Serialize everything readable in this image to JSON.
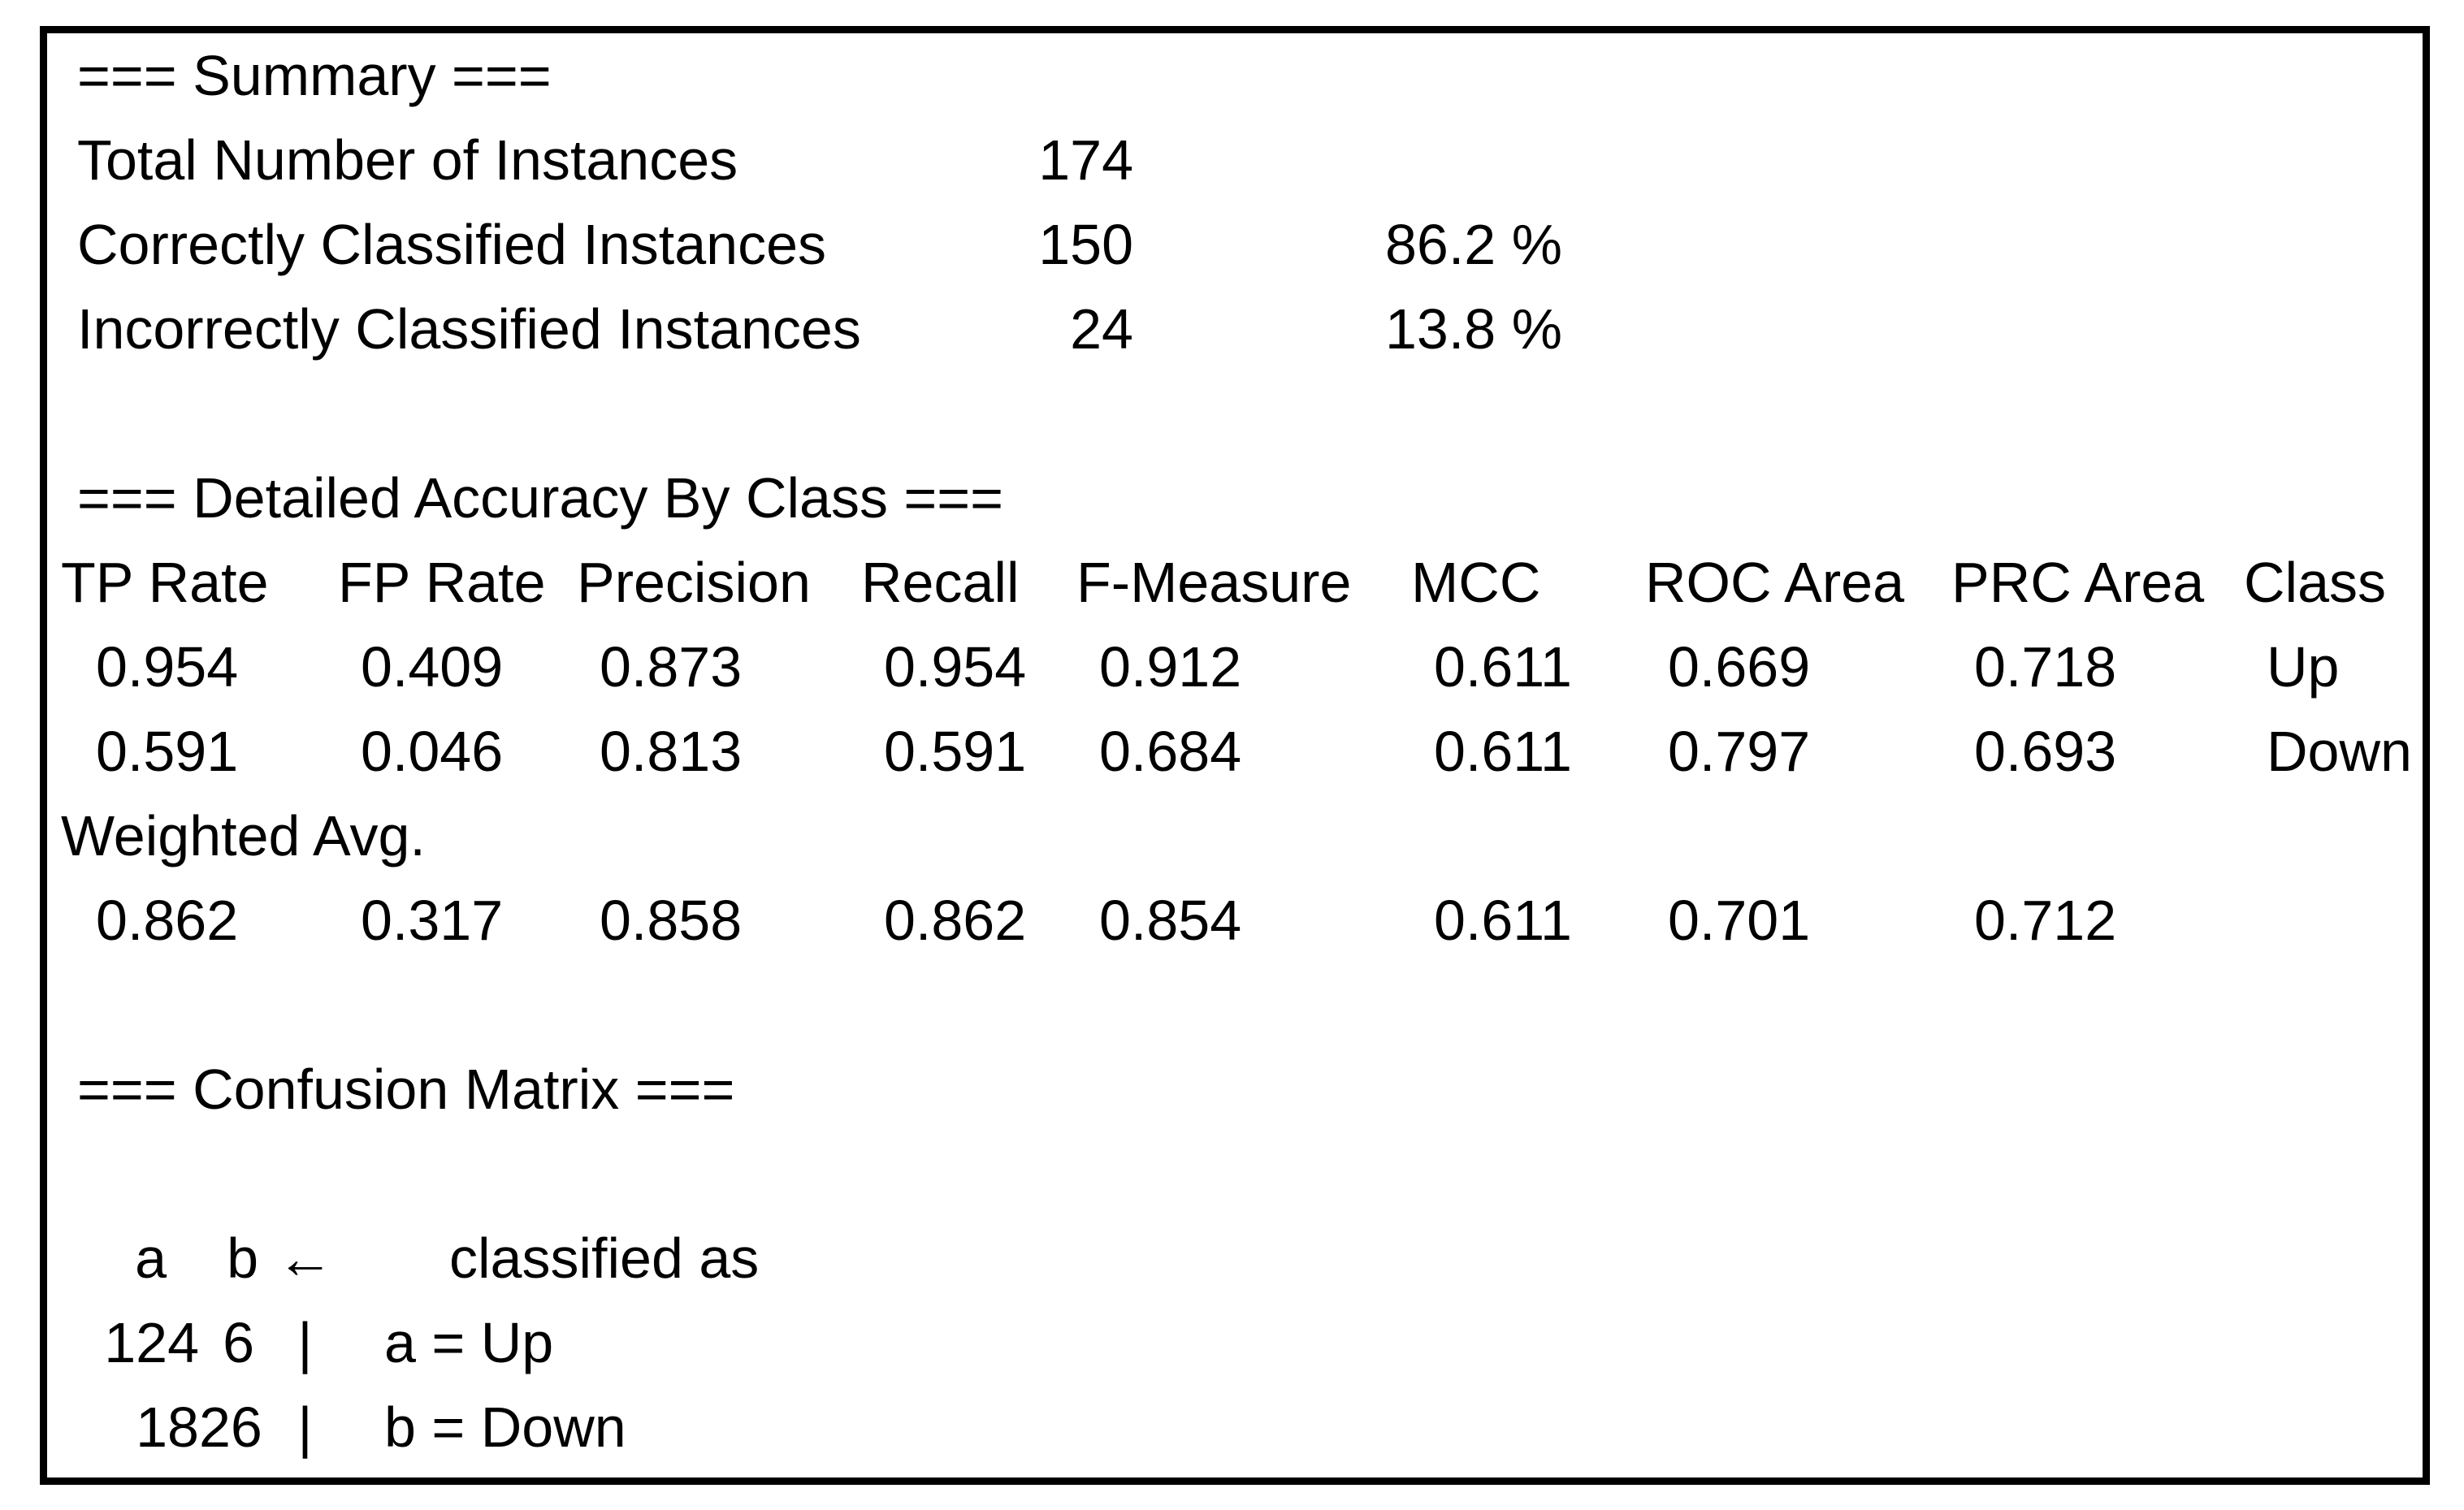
{
  "colors": {
    "background": "#ffffff",
    "border": "#000000",
    "text": "#000000"
  },
  "summary": {
    "heading": "=== Summary ===",
    "rows": [
      {
        "label": "Total Number of Instances",
        "value": "174",
        "pct": ""
      },
      {
        "label": "Correctly Classified Instances",
        "value": "150",
        "pct": "86.2 %"
      },
      {
        "label": "Incorrectly Classified Instances",
        "value": "24",
        "pct": "13.8 %"
      }
    ]
  },
  "detailed_accuracy": {
    "heading": "=== Detailed Accuracy By Class ===",
    "columns": [
      "TP Rate",
      "FP Rate",
      "Precision",
      "Recall",
      "F-Measure",
      "MCC",
      "ROC Area",
      "PRC Area",
      "Class"
    ],
    "rows": [
      [
        "0.954",
        "0.409",
        "0.873",
        "0.954",
        "0.912",
        "0.611",
        "0.669",
        "0.718",
        "Up"
      ],
      [
        "0.591",
        "0.046",
        "0.813",
        "0.591",
        "0.684",
        "0.611",
        "0.797",
        "0.693",
        "Down"
      ]
    ],
    "weighted_label": "Weighted Avg.",
    "weighted_row": [
      "0.862",
      "0.317",
      "0.858",
      "0.862",
      "0.854",
      "0.611",
      "0.701",
      "0.712",
      ""
    ]
  },
  "confusion_matrix": {
    "heading": "=== Confusion Matrix ===",
    "header": {
      "a": "a",
      "b": "b",
      "arrow": "←",
      "caption": "classified as"
    },
    "rows": [
      {
        "a": "124",
        "b": "6",
        "sep": "|",
        "label": "a = Up"
      },
      {
        "a": "18",
        "b": "26",
        "sep": "|",
        "label": "b = Down"
      }
    ]
  }
}
